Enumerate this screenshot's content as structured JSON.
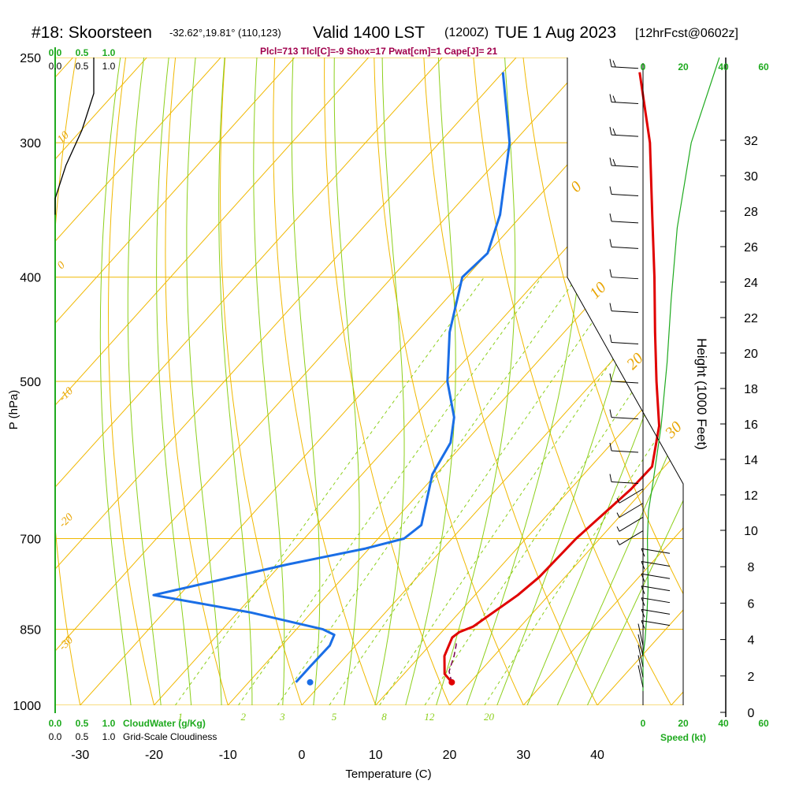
{
  "header": {
    "station": "#18: Skoorsteen",
    "location": "-32.62°,19.81° (110,123)",
    "valid": "Valid 1400 LST",
    "zulu": "(1200Z)",
    "date": "TUE 1 Aug 2023",
    "forecast": "[12hrFcst@0602z]"
  },
  "indices_text": "Plcl=713 Tlcl[C]=-9 Shox=17 Pwat[cm]=1 Cape[J]= 21",
  "colors": {
    "isobar": "#f0b800",
    "isotherm": "#f0b800",
    "dry_adiabat": "#f0b800",
    "moist_adiabat": "#8ccf1a",
    "mixing_ratio": "#8ccf1a",
    "temperature": "#e00000",
    "dewpoint": "#1a6ee6",
    "parcel": "#7a0050",
    "cloud": "#000000",
    "wind_speed": "#1faa1f",
    "frame": "#1faa1f"
  },
  "chart_data": {
    "type": "line",
    "title": "#18: Skoorsteen Valid 1400 LST (1200Z) TUE 1 Aug 2023 [12hrFcst@0602z]",
    "xlabel": "Temperature (C)",
    "ylabel": "P (hPa)",
    "right_ylabel": "Height (1000 Feet)",
    "x_ticks": [
      -30,
      -20,
      -10,
      0,
      10,
      20,
      30,
      40
    ],
    "xlim": [
      -34,
      46
    ],
    "y_scale": "log",
    "p_ticks": [
      250,
      300,
      400,
      500,
      700,
      850,
      1000
    ],
    "plim": [
      1000,
      250
    ],
    "height_ticks": [
      0,
      2,
      4,
      6,
      8,
      10,
      12,
      14,
      16,
      18,
      20,
      22,
      24,
      26,
      28,
      30,
      32
    ],
    "skew_c_per_log_p": 57,
    "dry_adiabat_labels": [
      "10",
      "0",
      "-10",
      "-20",
      "-30",
      "0",
      "10",
      "20",
      "30"
    ],
    "mixing_ratio_values": [
      1,
      2,
      3,
      5,
      8,
      12,
      20
    ],
    "mixing_ratio_labels": [
      "1",
      "2",
      "3",
      "5",
      "8",
      "12",
      "20"
    ],
    "series": [
      {
        "name": "Temperature",
        "p": [
          952,
          935,
          900,
          865,
          855,
          845,
          790,
          760,
          700,
          630,
          600,
          550,
          500,
          450,
          400,
          350,
          300,
          258
        ],
        "value": [
          17.5,
          15.5,
          13.3,
          12.1,
          12.4,
          13.6,
          15.8,
          16.5,
          16.8,
          18.2,
          18.3,
          14.3,
          8.5,
          2.3,
          -4.5,
          -12.4,
          -21.5,
          -31.5
        ]
      },
      {
        "name": "Dewpoint",
        "p": [
          952,
          920,
          880,
          860,
          850,
          820,
          790,
          740,
          715,
          700,
          680,
          610,
          570,
          540,
          500,
          450,
          400,
          380,
          350,
          300,
          258
        ],
        "value": [
          -3.6,
          -3.6,
          -3.5,
          -4.2,
          -6.4,
          -18.2,
          -33.5,
          -19.2,
          -10.5,
          -6.5,
          -5.8,
          -10.5,
          -11.9,
          -14.5,
          -19.8,
          -25.5,
          -30.5,
          -30.0,
          -33.0,
          -40.5,
          -50.0
        ]
      },
      {
        "name": "Parcel",
        "p": [
          952,
          930,
          900,
          880,
          870
        ],
        "value": [
          17.5,
          15.8,
          14.6,
          13.6,
          13.0
        ]
      }
    ],
    "surface": {
      "p": 952,
      "temperature": 17.5,
      "dewpoint": -3.6
    },
    "cloud_scale_labels": [
      "0.0",
      "0.5",
      "1.0"
    ],
    "cloud_fraction": [
      {
        "p": 250,
        "value": 0.72
      },
      {
        "p": 270,
        "value": 0.72
      },
      {
        "p": 292,
        "value": 0.5
      },
      {
        "p": 315,
        "value": 0.2
      },
      {
        "p": 338,
        "value": 0.0
      }
    ],
    "wind_speed_scale_labels": [
      "0",
      "20",
      "40",
      "60"
    ],
    "wind_speed_label": "Speed (kt)",
    "wind_speed": [
      {
        "p": 970,
        "value": 0
      },
      {
        "p": 900,
        "value": 0
      },
      {
        "p": 870,
        "value": 1
      },
      {
        "p": 820,
        "value": 2
      },
      {
        "p": 780,
        "value": 2.5
      },
      {
        "p": 700,
        "value": 2.2
      },
      {
        "p": 660,
        "value": 2.7
      },
      {
        "p": 620,
        "value": 5
      },
      {
        "p": 550,
        "value": 9
      },
      {
        "p": 480,
        "value": 12
      },
      {
        "p": 420,
        "value": 14
      },
      {
        "p": 360,
        "value": 17
      },
      {
        "p": 300,
        "value": 24
      },
      {
        "p": 250,
        "value": 38
      }
    ],
    "wind_barbs_p": [
      255,
      275,
      295,
      315,
      335,
      355,
      375,
      400,
      430,
      460,
      500,
      540,
      580,
      620,
      640,
      660,
      680,
      700,
      720,
      740,
      760,
      780,
      800,
      820,
      840,
      860,
      880,
      900,
      920,
      940
    ],
    "legend": {
      "cloud_water": "CloudWater (g/Kg)",
      "cloudiness": "Grid-Scale Cloudiness",
      "scale": [
        "0.0",
        "0.5",
        "1.0"
      ]
    }
  }
}
